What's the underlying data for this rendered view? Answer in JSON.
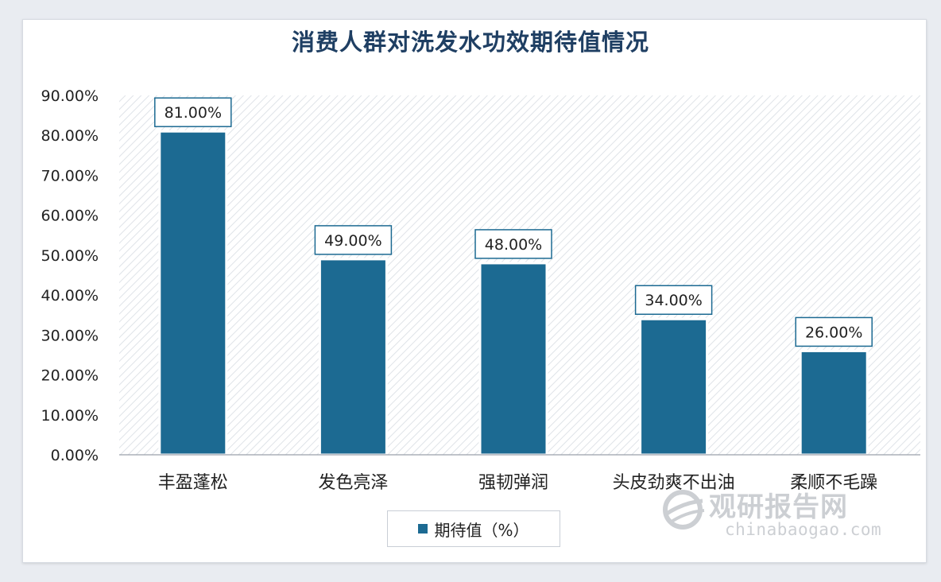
{
  "chart_data": {
    "type": "bar",
    "title": "消费人群对洗发水功效期待值情况",
    "categories": [
      "丰盈蓬松",
      "发色亮泽",
      "强韧弹润",
      "头皮劲爽不出油",
      "柔顺不毛躁"
    ],
    "series": [
      {
        "name": "期待值（%）",
        "values": [
          81.0,
          49.0,
          48.0,
          34.0,
          26.0
        ]
      }
    ],
    "data_labels": [
      "81.00%",
      "49.00%",
      "48.00%",
      "34.00%",
      "26.00%"
    ],
    "y_ticks": [
      "0.00%",
      "10.00%",
      "20.00%",
      "30.00%",
      "40.00%",
      "50.00%",
      "60.00%",
      "70.00%",
      "80.00%",
      "90.00%"
    ],
    "ylim": [
      0,
      90
    ],
    "xlabel": "",
    "ylabel": "",
    "legend_position": "bottom",
    "grid": false,
    "bar_color": "#1c6a92",
    "title_color": "#1f3f63"
  },
  "watermark": {
    "brand": "观研报告网",
    "site": "chinabaogao.com",
    "icon": "globe-logo-icon"
  }
}
